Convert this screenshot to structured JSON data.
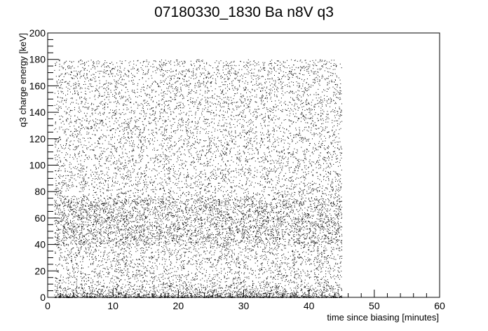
{
  "chart_data": {
    "type": "scatter",
    "title": "07180330_1830 Ba n8V q3",
    "xlabel": "time since biasing [minutes]",
    "ylabel": "q3 charge energy [keV]",
    "xlim": [
      0,
      60
    ],
    "ylim": [
      0,
      200
    ],
    "xticks": [
      0,
      10,
      20,
      30,
      40,
      50,
      60
    ],
    "yticks": [
      0,
      20,
      40,
      60,
      80,
      100,
      120,
      140,
      160,
      180,
      200
    ],
    "grid": false,
    "legend": "none",
    "marker_color": "#000000",
    "data_x_range": [
      1,
      45
    ],
    "data_y_range": [
      0,
      180
    ],
    "density_profile": [
      {
        "y_from": 0,
        "y_to": 10,
        "relative_density": 3.0
      },
      {
        "y_from": 10,
        "y_to": 40,
        "relative_density": 1.0
      },
      {
        "y_from": 40,
        "y_to": 75,
        "relative_density": 1.9
      },
      {
        "y_from": 75,
        "y_to": 180,
        "relative_density": 0.9
      }
    ]
  }
}
